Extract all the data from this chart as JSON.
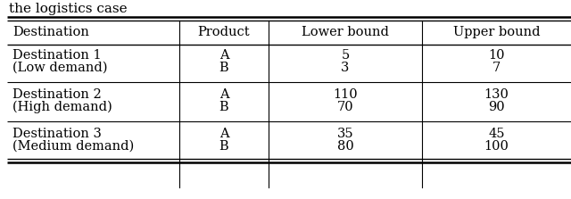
{
  "title": "the logistics case",
  "columns": [
    "Destination",
    "Product",
    "Lower bound",
    "Upper bound"
  ],
  "rows": [
    [
      "Destination 1",
      "A",
      "5",
      "10"
    ],
    [
      "(Low demand)",
      "B",
      "3",
      "7"
    ],
    [
      "Destination 2",
      "A",
      "110",
      "130"
    ],
    [
      "(High demand)",
      "B",
      "70",
      "90"
    ],
    [
      "Destination 3",
      "A",
      "35",
      "45"
    ],
    [
      "(Medium demand)",
      "B",
      "80",
      "100"
    ]
  ],
  "col_aligns": [
    "left",
    "center",
    "center",
    "center"
  ],
  "background_color": "#ffffff",
  "font_size": 10.5,
  "title_font_size": 11,
  "fig_width": 6.4,
  "fig_height": 2.23,
  "dpi": 100
}
